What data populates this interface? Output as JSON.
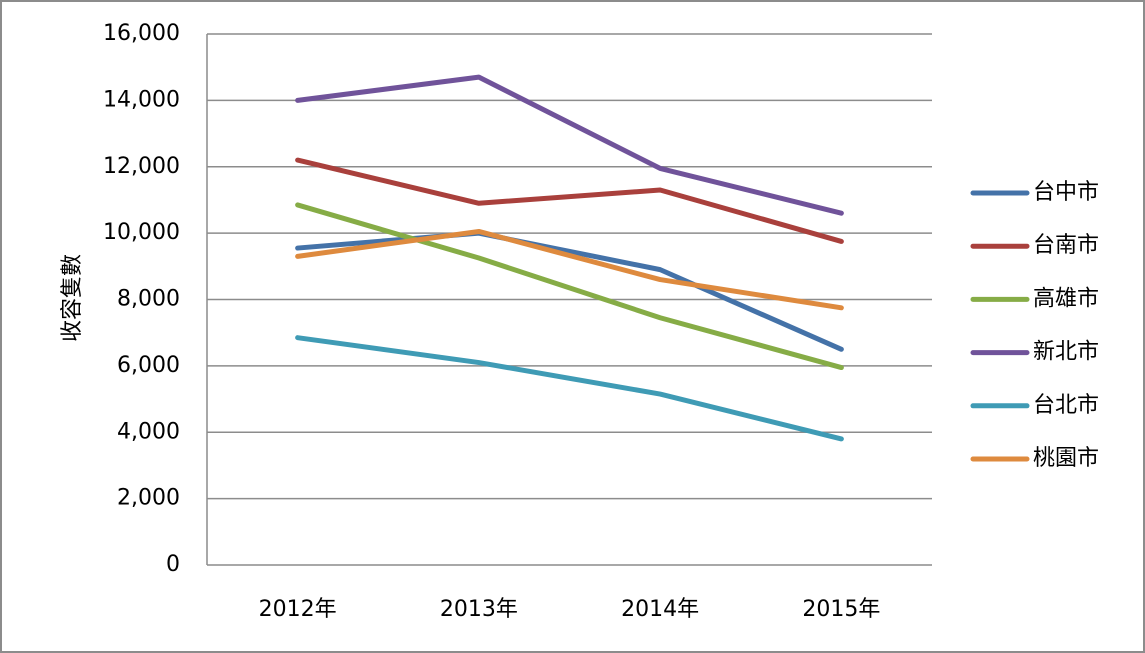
{
  "chart_data": {
    "type": "line",
    "ylabel": "收容隻數",
    "xlabel": "",
    "title": "",
    "categories": [
      "2012年",
      "2013年",
      "2014年",
      "2015年"
    ],
    "ylim": [
      0,
      16000
    ],
    "yticks": [
      0,
      2000,
      4000,
      6000,
      8000,
      10000,
      12000,
      14000,
      16000
    ],
    "ytick_labels": [
      "0",
      "2,000",
      "4,000",
      "6,000",
      "8,000",
      "10,000",
      "12,000",
      "14,000",
      "16,000"
    ],
    "grid": "horizontal",
    "legend_position": "right",
    "series": [
      {
        "name": "台中市",
        "color": "#4472a8",
        "values": [
          9550,
          10000,
          8900,
          6500
        ]
      },
      {
        "name": "台南市",
        "color": "#a9403c",
        "values": [
          12200,
          10900,
          11300,
          9750
        ]
      },
      {
        "name": "高雄市",
        "color": "#86ac46",
        "values": [
          10850,
          9250,
          7450,
          5950
        ]
      },
      {
        "name": "新北市",
        "color": "#70539a",
        "values": [
          14000,
          14700,
          11950,
          10600
        ]
      },
      {
        "name": "台北市",
        "color": "#3f9bb5",
        "values": [
          6850,
          6100,
          5150,
          3800
        ]
      },
      {
        "name": "桃園市",
        "color": "#de8a3e",
        "values": [
          9300,
          10050,
          8600,
          7750
        ]
      }
    ]
  }
}
